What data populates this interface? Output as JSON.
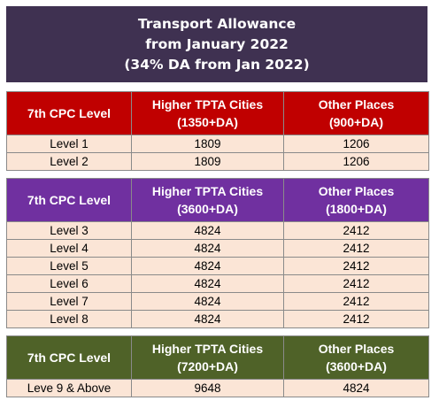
{
  "title": {
    "line1": "Transport Allowance",
    "line2": "from January 2022",
    "line3": "(34% DA from Jan 2022)"
  },
  "colors": {
    "title_bg": "#3f3151",
    "table1_header": "#c00000",
    "table2_header": "#7030a0",
    "table3_header": "#4f6228",
    "row_bg": "#fbe5d6"
  },
  "tables": [
    {
      "headers": {
        "level": "7th CPC Level",
        "higher_title": "Higher TPTA Cities",
        "higher_rate": "(1350+DA)",
        "other_title": "Other Places",
        "other_rate": "(900+DA)"
      },
      "rows": [
        {
          "level": "Level 1",
          "higher": "1809",
          "other": "1206"
        },
        {
          "level": "Level 2",
          "higher": "1809",
          "other": "1206"
        }
      ]
    },
    {
      "headers": {
        "level": "7th CPC Level",
        "higher_title": "Higher TPTA Cities",
        "higher_rate": "(3600+DA)",
        "other_title": "Other Places",
        "other_rate": "(1800+DA)"
      },
      "rows": [
        {
          "level": "Level 3",
          "higher": "4824",
          "other": "2412"
        },
        {
          "level": "Level 4",
          "higher": "4824",
          "other": "2412"
        },
        {
          "level": "Level 5",
          "higher": "4824",
          "other": "2412"
        },
        {
          "level": "Level 6",
          "higher": "4824",
          "other": "2412"
        },
        {
          "level": "Level 7",
          "higher": "4824",
          "other": "2412"
        },
        {
          "level": "Level 8",
          "higher": "4824",
          "other": "2412"
        }
      ]
    },
    {
      "headers": {
        "level": "7th CPC Level",
        "higher_title": "Higher TPTA Cities",
        "higher_rate": "(7200+DA)",
        "other_title": "Other Places",
        "other_rate": "(3600+DA)"
      },
      "rows": [
        {
          "level": "Leve 9 & Above",
          "higher": "9648",
          "other": "4824"
        }
      ]
    }
  ]
}
